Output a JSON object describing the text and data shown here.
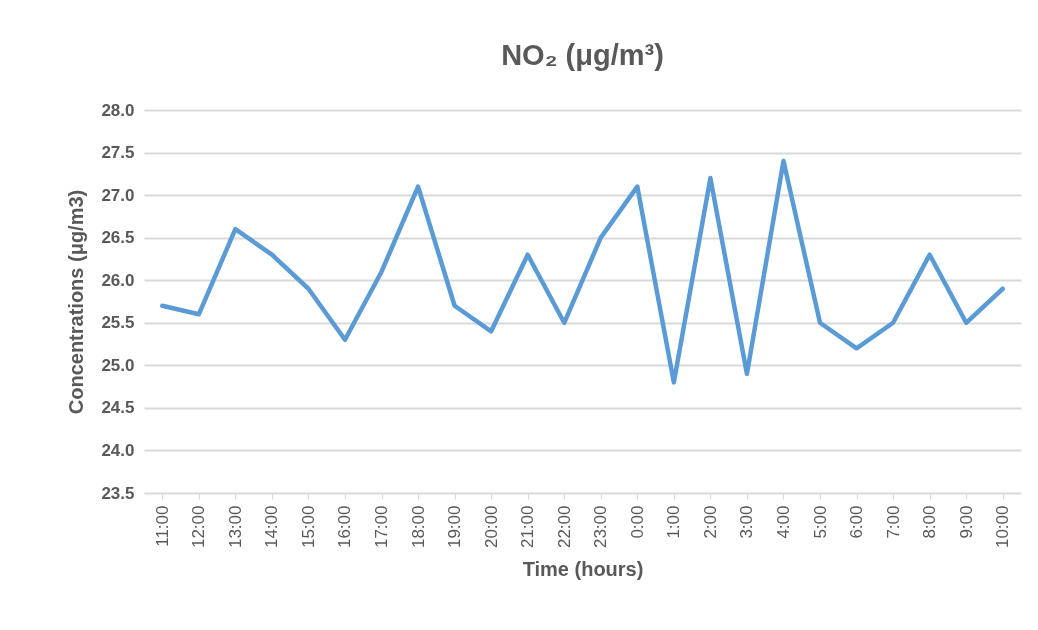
{
  "chart_data": {
    "type": "line",
    "title": "NO₂ (μg/m³)",
    "xlabel": "Time (hours)",
    "ylabel": "Concentrations (μg/m3)",
    "categories": [
      "11:00",
      "12:00",
      "13:00",
      "14:00",
      "15:00",
      "16:00",
      "17:00",
      "18:00",
      "19:00",
      "20:00",
      "21:00",
      "22:00",
      "23:00",
      "0:00",
      "1:00",
      "2:00",
      "3:00",
      "4:00",
      "5:00",
      "6:00",
      "7:00",
      "8:00",
      "9:00",
      "10:00"
    ],
    "series": [
      {
        "color": "#5b9bd5",
        "values": [
          25.7,
          25.6,
          26.6,
          26.3,
          25.9,
          25.3,
          26.1,
          27.1,
          25.7,
          25.4,
          26.3,
          25.5,
          26.5,
          27.1,
          24.8,
          27.2,
          24.9,
          27.4,
          25.5,
          25.2,
          25.5,
          26.3,
          25.5,
          25.9
        ]
      }
    ],
    "ylim": [
      23.5,
      28
    ],
    "yticks": [
      23.5,
      {
        "value": 24,
        "label": "24.0"
      },
      24.5,
      {
        "value": 25,
        "label": "25.0"
      },
      25.5,
      {
        "value": 26,
        "label": "26.0"
      },
      26.5,
      {
        "value": 27,
        "label": "27.0"
      },
      27.5,
      {
        "value": 28,
        "label": "28.0"
      }
    ],
    "grid": "y",
    "marker": "none",
    "line_style": "solid"
  }
}
